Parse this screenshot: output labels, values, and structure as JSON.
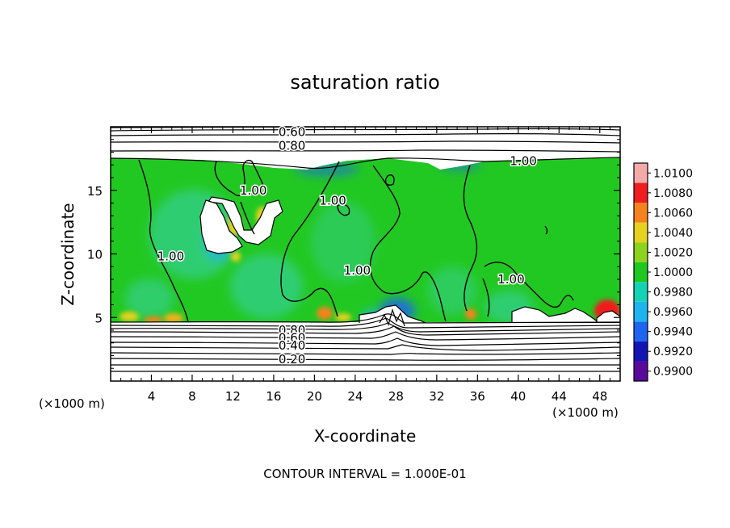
{
  "chart_data": {
    "type": "heatmap",
    "title": "saturation ratio",
    "xlabel": "X-coordinate",
    "ylabel": "Z-coordinate",
    "x_unit": "(×1000 m)",
    "footnote": "CONTOUR INTERVAL = 1.000E-01",
    "xlim": [
      0,
      50
    ],
    "ylim": [
      0,
      20
    ],
    "x_ticks": [
      4,
      8,
      12,
      16,
      20,
      24,
      28,
      32,
      36,
      40,
      44,
      48
    ],
    "y_ticks": [
      5,
      10,
      15
    ],
    "colorbar": {
      "levels": [
        0.99,
        0.992,
        0.994,
        0.996,
        0.998,
        1.0,
        1.002,
        1.004,
        1.006,
        1.008,
        1.01
      ],
      "labels": [
        "0.9900",
        "0.9920",
        "0.9940",
        "0.9960",
        "0.9980",
        "1.0000",
        "1.0020",
        "1.0040",
        "1.0060",
        "1.0080",
        "1.0100"
      ],
      "colors": [
        "#5a0a9a",
        "#1414b4",
        "#1e64f0",
        "#1eb4f0",
        "#14d2b4",
        "#1ec81e",
        "#8cd21e",
        "#e6d21e",
        "#f5821e",
        "#f01e1e",
        "#f5aaaa"
      ]
    },
    "contour_labels": [
      {
        "text": "0.60",
        "x": 17.8,
        "y": 19.6
      },
      {
        "text": "0.80",
        "x": 17.8,
        "y": 18.5
      },
      {
        "text": "1.00",
        "x": 40.5,
        "y": 17.3
      },
      {
        "text": "1.00",
        "x": 14.0,
        "y": 15.0
      },
      {
        "text": "1.00",
        "x": 21.8,
        "y": 14.2
      },
      {
        "text": "1.00",
        "x": 5.9,
        "y": 9.8
      },
      {
        "text": "1.00",
        "x": 24.2,
        "y": 8.7
      },
      {
        "text": "1.00",
        "x": 39.3,
        "y": 8.0
      },
      {
        "text": "0.80",
        "x": 17.8,
        "y": 4.0
      },
      {
        "text": "0.60",
        "x": 17.8,
        "y": 3.4
      },
      {
        "text": "0.40",
        "x": 17.8,
        "y": 2.8
      },
      {
        "text": "0.20",
        "x": 17.8,
        "y": 1.7
      }
    ]
  }
}
